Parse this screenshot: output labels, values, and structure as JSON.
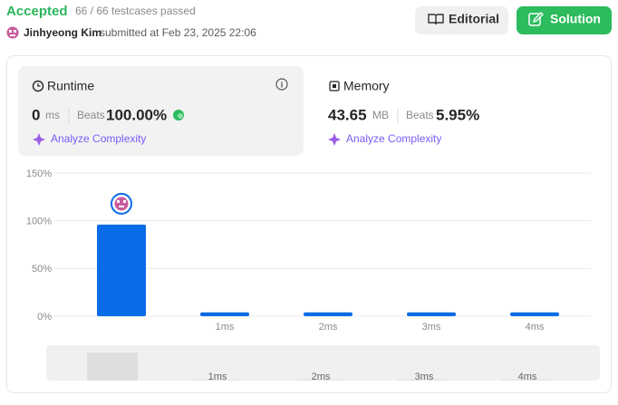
{
  "header": {
    "status": "Accepted",
    "testcases": "66 / 66 testcases passed",
    "user": "Jinhyeong Kim",
    "submitted": "submitted at Feb 23, 2025 22:06"
  },
  "buttons": {
    "editorial": "Editorial",
    "solution": "Solution"
  },
  "runtime": {
    "label": "Runtime",
    "value": "0",
    "unit": "ms",
    "beats_label": "Beats",
    "beats": "100.00%",
    "link": "Analyze Complexity"
  },
  "memory": {
    "label": "Memory",
    "value": "43.65",
    "unit": "MB",
    "beats_label": "Beats",
    "beats": "5.95%",
    "link": "Analyze Complexity"
  },
  "chart_data": {
    "type": "bar",
    "categories": [
      null,
      "1ms",
      "2ms",
      "3ms",
      "4ms"
    ],
    "values": [
      96,
      4,
      4,
      4,
      4
    ],
    "color": "#0a6ce6",
    "ylim": [
      0,
      150
    ],
    "yticks": [
      {
        "value": 0,
        "label": "0%"
      },
      {
        "value": 50,
        "label": "50%"
      },
      {
        "value": 100,
        "label": "100%"
      },
      {
        "value": 150,
        "label": "150%"
      }
    ],
    "grid": true
  }
}
